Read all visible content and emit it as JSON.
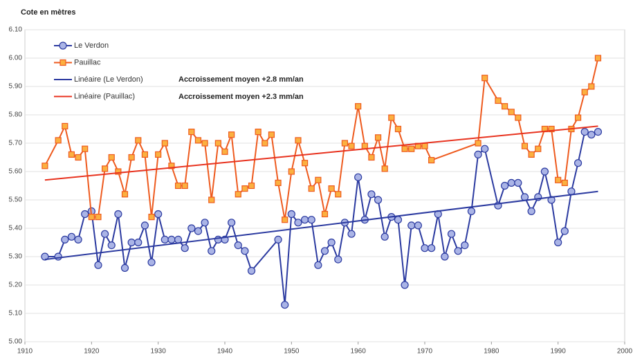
{
  "chart_data": {
    "type": "line",
    "y_label": "Cote en mètres",
    "xlim": [
      1910,
      2000
    ],
    "xticks": [
      1910,
      1920,
      1930,
      1940,
      1950,
      1960,
      1970,
      1980,
      1990,
      2000
    ],
    "ylim": [
      5.0,
      6.1
    ],
    "yticks": [
      {
        "value": 5.0,
        "label": "5.00"
      },
      {
        "value": 5.1,
        "label": "5.10"
      },
      {
        "value": 5.2,
        "label": "5.20"
      },
      {
        "value": 5.3,
        "label": "5.30"
      },
      {
        "value": 5.4,
        "label": "5.40"
      },
      {
        "value": 5.5,
        "label": "5.50"
      },
      {
        "value": 5.6,
        "label": "5.60"
      },
      {
        "value": 5.7,
        "label": "5.70"
      },
      {
        "value": 5.8,
        "label": "5.80"
      },
      {
        "value": 5.9,
        "label": "5.90"
      },
      {
        "value": 6.0,
        "label": "6.00"
      },
      {
        "value": 6.1,
        "label": "6.10"
      }
    ],
    "grid": true,
    "legend": "top-left",
    "annotations": [
      "Accroissement moyen +2.8 mm/an",
      "Accroissement moyen +2.3 mm/an"
    ],
    "series": [
      {
        "name": "Le Verdon",
        "color": "#2b3aa0",
        "marker": "circle",
        "x": [
          1913,
          1915,
          1916,
          1917,
          1918,
          1919,
          1920,
          1921,
          1922,
          1923,
          1924,
          1925,
          1926,
          1927,
          1928,
          1929,
          1930,
          1931,
          1932,
          1933,
          1934,
          1935,
          1936,
          1937,
          1938,
          1939,
          1940,
          1941,
          1942,
          1943,
          1944,
          1948,
          1949,
          1950,
          1951,
          1952,
          1953,
          1954,
          1955,
          1956,
          1957,
          1958,
          1959,
          1960,
          1961,
          1962,
          1963,
          1964,
          1965,
          1966,
          1967,
          1968,
          1969,
          1970,
          1971,
          1972,
          1973,
          1974,
          1975,
          1976,
          1977,
          1978,
          1979,
          1981,
          1982,
          1983,
          1984,
          1985,
          1986,
          1987,
          1988,
          1989,
          1990,
          1991,
          1992,
          1993,
          1994,
          1995,
          1996
        ],
        "values": [
          5.3,
          5.3,
          5.36,
          5.37,
          5.36,
          5.45,
          5.46,
          5.27,
          5.38,
          5.34,
          5.45,
          5.26,
          5.35,
          5.35,
          5.41,
          5.28,
          5.45,
          5.36,
          5.36,
          5.36,
          5.33,
          5.4,
          5.39,
          5.42,
          5.32,
          5.36,
          5.36,
          5.42,
          5.34,
          5.32,
          5.25,
          5.36,
          5.13,
          5.45,
          5.42,
          5.43,
          5.43,
          5.27,
          5.32,
          5.35,
          5.29,
          5.42,
          5.38,
          5.58,
          5.43,
          5.52,
          5.5,
          5.37,
          5.44,
          5.43,
          5.2,
          5.41,
          5.41,
          5.33,
          5.33,
          5.45,
          5.3,
          5.38,
          5.32,
          5.34,
          5.46,
          5.66,
          5.68,
          5.48,
          5.55,
          5.56,
          5.56,
          5.51,
          5.46,
          5.51,
          5.6,
          5.5,
          5.35,
          5.39,
          5.53,
          5.63,
          5.74,
          5.73,
          5.74
        ]
      },
      {
        "name": "Pauillac",
        "color": "#ee5a1e",
        "marker": "square",
        "x": [
          1913,
          1915,
          1916,
          1917,
          1918,
          1919,
          1920,
          1921,
          1922,
          1923,
          1924,
          1925,
          1926,
          1927,
          1928,
          1929,
          1930,
          1931,
          1932,
          1933,
          1934,
          1935,
          1936,
          1937,
          1938,
          1939,
          1940,
          1941,
          1942,
          1943,
          1944,
          1945,
          1946,
          1947,
          1948,
          1949,
          1950,
          1951,
          1952,
          1953,
          1954,
          1955,
          1956,
          1957,
          1958,
          1959,
          1960,
          1961,
          1962,
          1963,
          1964,
          1965,
          1966,
          1967,
          1968,
          1969,
          1970,
          1971,
          1978,
          1979,
          1981,
          1982,
          1983,
          1984,
          1985,
          1986,
          1987,
          1988,
          1989,
          1990,
          1991,
          1992,
          1993,
          1994,
          1995,
          1996
        ],
        "values": [
          5.62,
          5.71,
          5.76,
          5.66,
          5.65,
          5.68,
          5.44,
          5.44,
          5.61,
          5.65,
          5.6,
          5.52,
          5.65,
          5.71,
          5.66,
          5.44,
          5.66,
          5.7,
          5.62,
          5.55,
          5.55,
          5.74,
          5.71,
          5.7,
          5.5,
          5.7,
          5.67,
          5.73,
          5.52,
          5.54,
          5.55,
          5.74,
          5.7,
          5.73,
          5.56,
          5.43,
          5.6,
          5.71,
          5.63,
          5.54,
          5.57,
          5.45,
          5.54,
          5.52,
          5.7,
          5.69,
          5.83,
          5.69,
          5.65,
          5.72,
          5.61,
          5.79,
          5.75,
          5.68,
          5.68,
          5.69,
          5.69,
          5.64,
          5.7,
          5.93,
          5.85,
          5.83,
          5.81,
          5.79,
          5.69,
          5.66,
          5.68,
          5.75,
          5.75,
          5.57,
          5.56,
          5.75,
          5.79,
          5.88,
          5.9,
          6.0
        ]
      },
      {
        "name": "Linéaire (Le Verdon)",
        "color": "#2b3aa0",
        "x": [
          1913,
          1996
        ],
        "values": [
          5.29,
          5.53
        ]
      },
      {
        "name": "Linéaire (Pauillac)",
        "color": "#e8321e",
        "x": [
          1913,
          1996
        ],
        "values": [
          5.57,
          5.76
        ]
      }
    ]
  }
}
